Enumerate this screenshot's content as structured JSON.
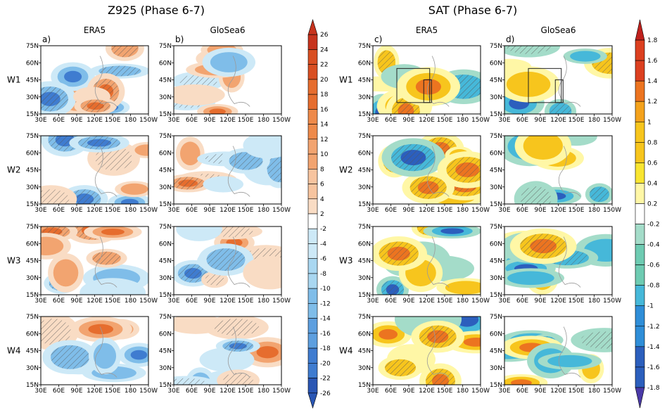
{
  "chart_data": {
    "type": "heatmap",
    "title_left": "Z925 (Phase 6-7)",
    "title_right": "SAT (Phase 6-7)",
    "columns": [
      {
        "panel": "a)",
        "title": "ERA5"
      },
      {
        "panel": "b)",
        "title": "GloSea6"
      },
      {
        "panel": "c)",
        "title": "ERA5"
      },
      {
        "panel": "d)",
        "title": "GloSea6"
      }
    ],
    "rows": [
      "W1",
      "W2",
      "W3",
      "W4"
    ],
    "x_ticks": [
      "30E",
      "60E",
      "90E",
      "120E",
      "150E",
      "180",
      "150W"
    ],
    "y_ticks": [
      "75N",
      "60N",
      "45N",
      "30N",
      "15N"
    ],
    "xlim": [
      30,
      210
    ],
    "ylim": [
      15,
      75
    ],
    "z925_levels": [
      26,
      24,
      22,
      20,
      18,
      16,
      14,
      12,
      10,
      8,
      6,
      4,
      2,
      -2,
      -4,
      -6,
      -8,
      -10,
      -12,
      -14,
      -16,
      -18,
      -20,
      -22,
      -26
    ],
    "sat_levels": [
      1.8,
      1.6,
      1.4,
      1.2,
      1,
      0.8,
      0.6,
      0.4,
      0.2,
      -0.2,
      -0.4,
      -0.6,
      -0.8,
      -1,
      -1.2,
      -1.4,
      -1.6,
      -1.8
    ]
  }
}
